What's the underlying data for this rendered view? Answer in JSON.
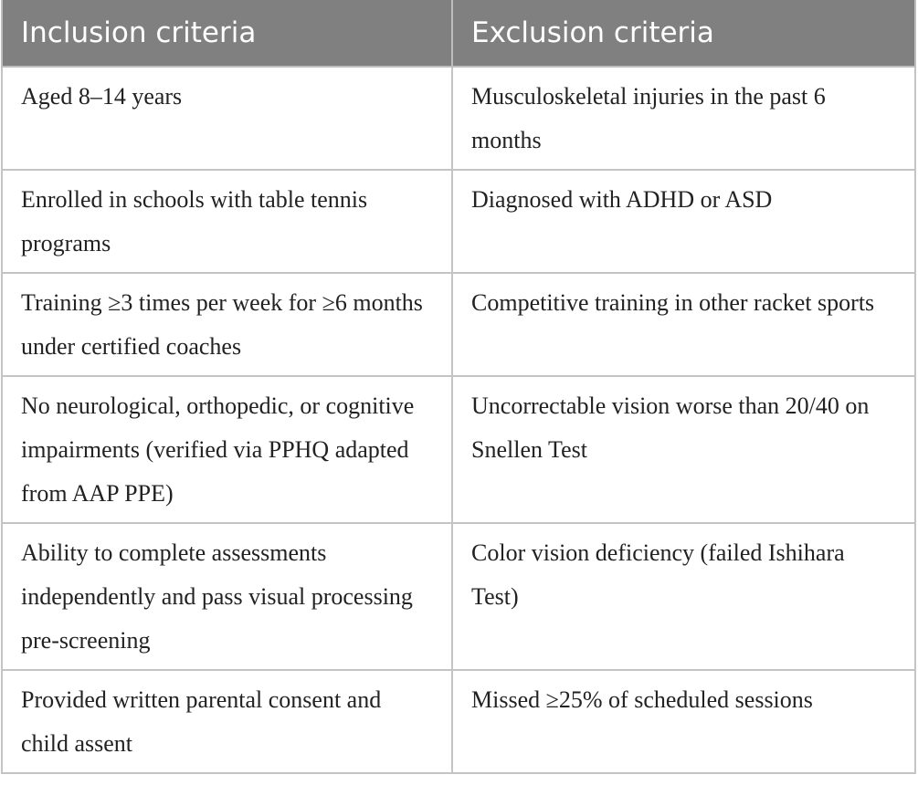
{
  "table": {
    "headers": [
      "Inclusion criteria",
      "Exclusion criteria"
    ],
    "rows": [
      [
        "Aged 8–14 years",
        "Musculoskeletal injuries in the past 6 months"
      ],
      [
        "Enrolled in schools with table tennis programs",
        "Diagnosed with ADHD or ASD"
      ],
      [
        "Training ≥3 times per week for ≥6 months under certified coaches",
        "Competitive training in other racket sports"
      ],
      [
        "No neurological, orthopedic, or cognitive impairments (verified via PPHQ adapted from AAP PPE)",
        "Uncorrectable vision worse than 20/40 on Snellen Test"
      ],
      [
        "Ability to complete assessments independently and pass visual processing pre-screening",
        "Color vision deficiency (failed Ishihara Test)"
      ],
      [
        "Provided written parental consent and child assent",
        "Missed ≥25% of scheduled sessions"
      ]
    ]
  }
}
